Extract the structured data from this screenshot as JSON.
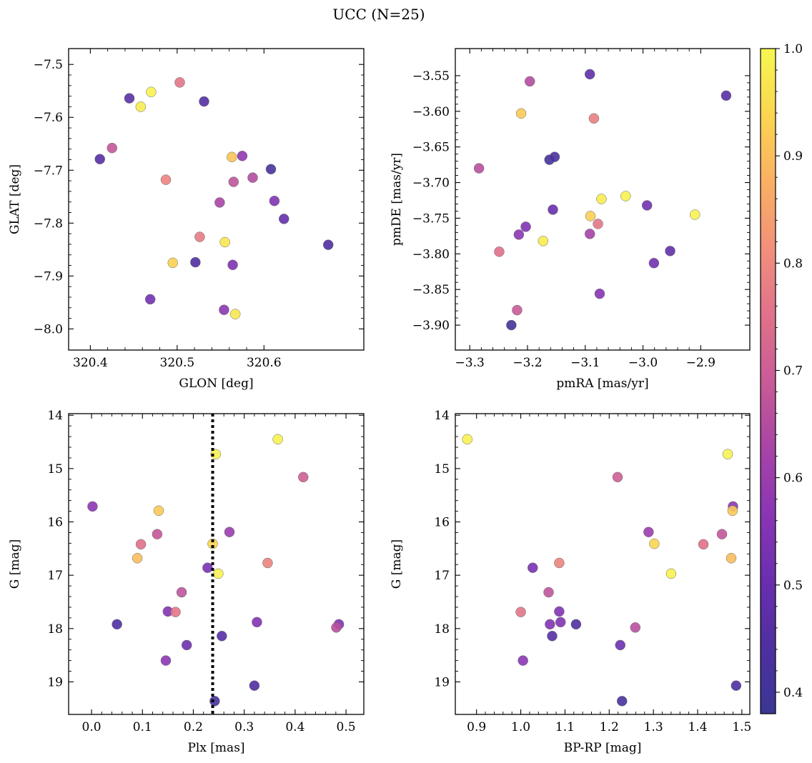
{
  "title": "UCC (N=25)",
  "colorbar": {
    "range": [
      0.38,
      1.0
    ],
    "ticks": [
      0.4,
      0.5,
      0.6,
      0.7,
      0.8,
      0.9,
      1.0
    ],
    "tick_labels": [
      "0.4",
      "0.5",
      "0.6",
      "0.7",
      "0.8",
      "0.9",
      "1.0"
    ],
    "colormap": "plasma (clipped)"
  },
  "chart_data": [
    {
      "type": "scatter",
      "xlabel": "GLON [deg]",
      "ylabel": "GLAT [deg]",
      "xlim": [
        320.375,
        320.715
      ],
      "ylim": [
        -8.04,
        -7.47
      ],
      "xticks": [
        320.4,
        320.5,
        320.6
      ],
      "xtick_labels": [
        "320.4",
        "320.5",
        "320.6"
      ],
      "yticks": [
        -7.5,
        -7.6,
        -7.7,
        -7.8,
        -7.9,
        -8.0
      ],
      "ytick_labels": [
        "−7.5",
        "−7.6",
        "−7.7",
        "−7.8",
        "−7.9",
        "−8.0"
      ],
      "points": [
        {
          "x": 320.47,
          "y": -7.552,
          "c": 0.99
        },
        {
          "x": 320.503,
          "y": -7.534,
          "c": 0.76
        },
        {
          "x": 320.458,
          "y": -7.58,
          "c": 0.98
        },
        {
          "x": 320.445,
          "y": -7.564,
          "c": 0.47
        },
        {
          "x": 320.531,
          "y": -7.57,
          "c": 0.45
        },
        {
          "x": 320.425,
          "y": -7.658,
          "c": 0.68
        },
        {
          "x": 320.411,
          "y": -7.679,
          "c": 0.46
        },
        {
          "x": 320.563,
          "y": -7.675,
          "c": 0.91
        },
        {
          "x": 320.575,
          "y": -7.673,
          "c": 0.58
        },
        {
          "x": 320.487,
          "y": -7.718,
          "c": 0.79
        },
        {
          "x": 320.565,
          "y": -7.722,
          "c": 0.67
        },
        {
          "x": 320.587,
          "y": -7.714,
          "c": 0.65
        },
        {
          "x": 320.608,
          "y": -7.698,
          "c": 0.42
        },
        {
          "x": 320.549,
          "y": -7.761,
          "c": 0.63
        },
        {
          "x": 320.612,
          "y": -7.758,
          "c": 0.55
        },
        {
          "x": 320.623,
          "y": -7.792,
          "c": 0.49
        },
        {
          "x": 320.526,
          "y": -7.826,
          "c": 0.77
        },
        {
          "x": 320.555,
          "y": -7.836,
          "c": 0.97
        },
        {
          "x": 320.495,
          "y": -7.875,
          "c": 0.93
        },
        {
          "x": 320.521,
          "y": -7.874,
          "c": 0.44
        },
        {
          "x": 320.564,
          "y": -7.879,
          "c": 0.54
        },
        {
          "x": 320.674,
          "y": -7.841,
          "c": 0.44
        },
        {
          "x": 320.469,
          "y": -7.944,
          "c": 0.52
        },
        {
          "x": 320.554,
          "y": -7.964,
          "c": 0.57
        },
        {
          "x": 320.567,
          "y": -7.972,
          "c": 0.97
        }
      ]
    },
    {
      "type": "scatter",
      "xlabel": "pmRA [mas/yr]",
      "ylabel": "pmDE [mas/yr]",
      "xlim": [
        -3.325,
        -2.815
      ],
      "ylim": [
        -3.935,
        -3.512
      ],
      "xticks": [
        -3.3,
        -3.2,
        -3.1,
        -3.0,
        -2.9
      ],
      "xtick_labels": [
        "−3.3",
        "−3.2",
        "−3.1",
        "−3.0",
        "−2.9"
      ],
      "yticks": [
        -3.55,
        -3.6,
        -3.65,
        -3.7,
        -3.75,
        -3.8,
        -3.85,
        -3.9
      ],
      "ytick_labels": [
        "−3.55",
        "−3.60",
        "−3.65",
        "−3.70",
        "−3.75",
        "−3.80",
        "−3.85",
        "−3.90"
      ],
      "points": [
        {
          "x": -3.092,
          "y": -3.548,
          "c": 0.48
        },
        {
          "x": -3.196,
          "y": -3.558,
          "c": 0.65
        },
        {
          "x": -2.856,
          "y": -3.578,
          "c": 0.46
        },
        {
          "x": -3.211,
          "y": -3.603,
          "c": 0.92
        },
        {
          "x": -3.085,
          "y": -3.61,
          "c": 0.78
        },
        {
          "x": -3.162,
          "y": -3.668,
          "c": 0.41
        },
        {
          "x": -3.153,
          "y": -3.664,
          "c": 0.43
        },
        {
          "x": -3.284,
          "y": -3.68,
          "c": 0.66
        },
        {
          "x": -3.072,
          "y": -3.723,
          "c": 0.98
        },
        {
          "x": -3.03,
          "y": -3.719,
          "c": 0.99
        },
        {
          "x": -3.156,
          "y": -3.738,
          "c": 0.5
        },
        {
          "x": -2.993,
          "y": -3.732,
          "c": 0.52
        },
        {
          "x": -3.091,
          "y": -3.747,
          "c": 0.93
        },
        {
          "x": -2.91,
          "y": -3.745,
          "c": 0.99
        },
        {
          "x": -3.203,
          "y": -3.762,
          "c": 0.55
        },
        {
          "x": -3.078,
          "y": -3.758,
          "c": 0.76
        },
        {
          "x": -3.215,
          "y": -3.773,
          "c": 0.57
        },
        {
          "x": -3.092,
          "y": -3.772,
          "c": 0.62
        },
        {
          "x": -3.173,
          "y": -3.782,
          "c": 0.98
        },
        {
          "x": -3.249,
          "y": -3.797,
          "c": 0.75
        },
        {
          "x": -2.953,
          "y": -3.796,
          "c": 0.48
        },
        {
          "x": -2.981,
          "y": -3.813,
          "c": 0.52
        },
        {
          "x": -3.075,
          "y": -3.856,
          "c": 0.56
        },
        {
          "x": -3.218,
          "y": -3.879,
          "c": 0.69
        },
        {
          "x": -3.228,
          "y": -3.9,
          "c": 0.4
        }
      ]
    },
    {
      "type": "scatter",
      "xlabel": "Plx [mas]",
      "ylabel": "G [mag]",
      "xlim": [
        -0.045,
        0.535
      ],
      "ylim": [
        19.61,
        13.97
      ],
      "xticks": [
        0.0,
        0.1,
        0.2,
        0.3,
        0.4,
        0.5
      ],
      "xtick_labels": [
        "0.0",
        "0.1",
        "0.2",
        "0.3",
        "0.4",
        "0.5"
      ],
      "yticks": [
        14,
        15,
        16,
        17,
        18,
        19
      ],
      "ytick_labels": [
        "14",
        "15",
        "16",
        "17",
        "18",
        "19"
      ],
      "vline": 0.238,
      "points": [
        {
          "x": 0.366,
          "y": 14.45,
          "c": 0.99
        },
        {
          "x": 0.244,
          "y": 14.73,
          "c": 0.99
        },
        {
          "x": 0.416,
          "y": 15.16,
          "c": 0.7
        },
        {
          "x": 0.002,
          "y": 15.71,
          "c": 0.57
        },
        {
          "x": 0.132,
          "y": 15.79,
          "c": 0.92
        },
        {
          "x": 0.129,
          "y": 16.23,
          "c": 0.68
        },
        {
          "x": 0.271,
          "y": 16.19,
          "c": 0.6
        },
        {
          "x": 0.097,
          "y": 16.42,
          "c": 0.75
        },
        {
          "x": 0.238,
          "y": 16.41,
          "c": 0.94
        },
        {
          "x": 0.09,
          "y": 16.68,
          "c": 0.9
        },
        {
          "x": 0.346,
          "y": 16.77,
          "c": 0.79
        },
        {
          "x": 0.228,
          "y": 16.86,
          "c": 0.53
        },
        {
          "x": 0.249,
          "y": 16.97,
          "c": 0.99
        },
        {
          "x": 0.177,
          "y": 17.32,
          "c": 0.67
        },
        {
          "x": 0.15,
          "y": 17.68,
          "c": 0.55
        },
        {
          "x": 0.165,
          "y": 17.69,
          "c": 0.76
        },
        {
          "x": 0.05,
          "y": 17.92,
          "c": 0.44
        },
        {
          "x": 0.325,
          "y": 17.88,
          "c": 0.55
        },
        {
          "x": 0.486,
          "y": 17.92,
          "c": 0.55
        },
        {
          "x": 0.481,
          "y": 17.98,
          "c": 0.66
        },
        {
          "x": 0.256,
          "y": 18.14,
          "c": 0.46
        },
        {
          "x": 0.187,
          "y": 18.31,
          "c": 0.51
        },
        {
          "x": 0.146,
          "y": 18.6,
          "c": 0.57
        },
        {
          "x": 0.32,
          "y": 19.07,
          "c": 0.44
        },
        {
          "x": 0.242,
          "y": 19.36,
          "c": 0.42
        }
      ]
    },
    {
      "type": "scatter",
      "xlabel": "BP-RP [mag]",
      "ylabel": "G [mag]",
      "xlim": [
        0.852,
        1.518
      ],
      "ylim": [
        19.61,
        13.97
      ],
      "xticks": [
        0.9,
        1.0,
        1.1,
        1.2,
        1.3,
        1.4,
        1.5
      ],
      "xtick_labels": [
        "0.9",
        "1.0",
        "1.1",
        "1.2",
        "1.3",
        "1.4",
        "1.5"
      ],
      "yticks": [
        14,
        15,
        16,
        17,
        18,
        19
      ],
      "ytick_labels": [
        "14",
        "15",
        "16",
        "17",
        "18",
        "19"
      ],
      "points": [
        {
          "x": 0.879,
          "y": 14.45,
          "c": 0.99
        },
        {
          "x": 1.468,
          "y": 14.73,
          "c": 0.99
        },
        {
          "x": 1.219,
          "y": 15.16,
          "c": 0.7
        },
        {
          "x": 1.48,
          "y": 15.71,
          "c": 0.57
        },
        {
          "x": 1.479,
          "y": 15.79,
          "c": 0.92
        },
        {
          "x": 1.455,
          "y": 16.23,
          "c": 0.68
        },
        {
          "x": 1.289,
          "y": 16.19,
          "c": 0.6
        },
        {
          "x": 1.413,
          "y": 16.42,
          "c": 0.75
        },
        {
          "x": 1.302,
          "y": 16.41,
          "c": 0.94
        },
        {
          "x": 1.476,
          "y": 16.68,
          "c": 0.9
        },
        {
          "x": 1.087,
          "y": 16.77,
          "c": 0.79
        },
        {
          "x": 1.027,
          "y": 16.86,
          "c": 0.53
        },
        {
          "x": 1.34,
          "y": 16.97,
          "c": 0.99
        },
        {
          "x": 1.063,
          "y": 17.32,
          "c": 0.67
        },
        {
          "x": 1.087,
          "y": 17.68,
          "c": 0.55
        },
        {
          "x": 1.0,
          "y": 17.69,
          "c": 0.76
        },
        {
          "x": 1.125,
          "y": 17.92,
          "c": 0.44
        },
        {
          "x": 1.09,
          "y": 17.88,
          "c": 0.55
        },
        {
          "x": 1.066,
          "y": 17.92,
          "c": 0.55
        },
        {
          "x": 1.259,
          "y": 17.98,
          "c": 0.66
        },
        {
          "x": 1.071,
          "y": 18.14,
          "c": 0.46
        },
        {
          "x": 1.225,
          "y": 18.31,
          "c": 0.51
        },
        {
          "x": 1.005,
          "y": 18.6,
          "c": 0.57
        },
        {
          "x": 1.487,
          "y": 19.07,
          "c": 0.44
        },
        {
          "x": 1.229,
          "y": 19.36,
          "c": 0.42
        }
      ]
    }
  ]
}
